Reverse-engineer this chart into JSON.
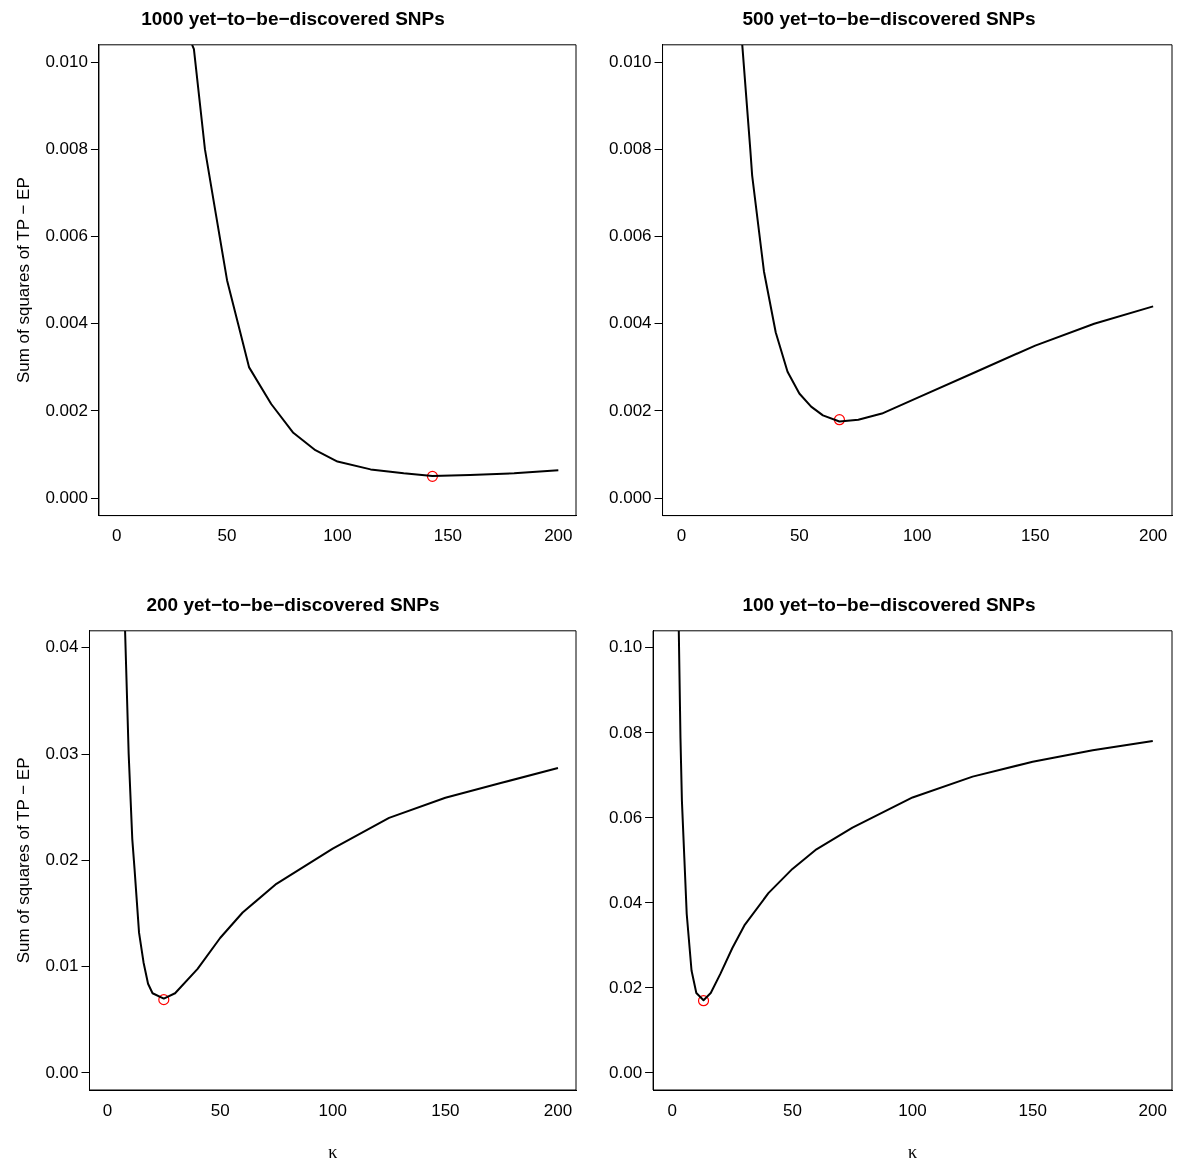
{
  "chart_data": [
    {
      "type": "line",
      "title": "1000 yet−to−be−discovered SNPs",
      "ylabel": "Sum of squares of TP − EP",
      "xlim": [
        -8,
        208
      ],
      "xticks": [
        0,
        50,
        100,
        150,
        200
      ],
      "ylim": [
        -0.0004,
        0.0104
      ],
      "yticks": [
        {
          "value": 0,
          "label": "0.000"
        },
        0.002,
        0.004,
        0.006,
        0.008,
        {
          "value": 0.01,
          "label": "0.010"
        }
      ],
      "grid": false,
      "legend": false,
      "series": [
        {
          "type": "line",
          "color": "#000000",
          "marker": "none",
          "x": [
            34.2,
            35,
            40,
            45,
            50,
            55,
            60,
            70,
            80,
            90,
            100,
            115,
            130,
            143,
            160,
            180,
            200
          ],
          "values": [
            0.0104,
            0.0103,
            0.008,
            0.0065,
            0.005,
            0.004,
            0.003,
            0.00216,
            0.0015,
            0.0011,
            0.00084,
            0.00066,
            0.00057,
            0.00051,
            0.00053,
            0.00057,
            0.00064
          ]
        },
        {
          "type": "scatter",
          "color": "#ff0000",
          "marker": "circle",
          "x": [
            143
          ],
          "values": [
            0.0005
          ]
        }
      ]
    },
    {
      "type": "line",
      "title": "500 yet−to−be−discovered SNPs",
      "xlim": [
        -8,
        208
      ],
      "xticks": [
        0,
        50,
        100,
        150,
        200
      ],
      "ylim": [
        -0.0004,
        0.0104
      ],
      "yticks": [
        {
          "value": 0,
          "label": "0.000"
        },
        0.002,
        0.004,
        0.006,
        0.008,
        {
          "value": 0.01,
          "label": "0.010"
        }
      ],
      "grid": false,
      "legend": false,
      "series": [
        {
          "type": "line",
          "color": "#000000",
          "marker": "none",
          "x": [
            25.8,
            29.2,
            30,
            35,
            40,
            45,
            50,
            55,
            60,
            67,
            75,
            85,
            100,
            125,
            150,
            175,
            200
          ],
          "values": [
            0.0104,
            0.008,
            0.0074,
            0.0052,
            0.0038,
            0.0029,
            0.0024,
            0.0021,
            0.0019,
            0.00176,
            0.0018,
            0.00194,
            0.0023,
            0.0029,
            0.0035,
            0.004,
            0.0044
          ]
        },
        {
          "type": "scatter",
          "color": "#ff0000",
          "marker": "circle",
          "x": [
            67
          ],
          "values": [
            0.0018
          ]
        }
      ]
    },
    {
      "type": "line",
      "title": "200 yet−to−be−discovered SNPs",
      "xlabel": "κ",
      "ylabel": "Sum of squares of TP − EP",
      "xlim": [
        -8,
        208
      ],
      "xticks": [
        0,
        50,
        100,
        150,
        200
      ],
      "ylim": [
        -0.0016,
        0.0416
      ],
      "yticks": [
        {
          "value": 0,
          "label": "0.00"
        },
        0.01,
        0.02,
        0.03,
        0.04
      ],
      "grid": false,
      "legend": false,
      "series": [
        {
          "type": "line",
          "color": "#000000",
          "marker": "none",
          "x": [
            7.8,
            9.4,
            11,
            12,
            14,
            16,
            18,
            20,
            25,
            30,
            40,
            50,
            60,
            75,
            100,
            125,
            150,
            175,
            200
          ],
          "values": [
            0.0416,
            0.03,
            0.022,
            0.0192,
            0.0132,
            0.0104,
            0.0084,
            0.0075,
            0.007,
            0.0075,
            0.0098,
            0.0127,
            0.0151,
            0.0178,
            0.0211,
            0.024,
            0.0259,
            0.0273,
            0.0287
          ]
        },
        {
          "type": "scatter",
          "color": "#ff0000",
          "marker": "circle",
          "x": [
            25
          ],
          "values": [
            0.0069
          ]
        }
      ]
    },
    {
      "type": "line",
      "title": "100 yet−to−be−discovered SNPs",
      "xlabel": "κ",
      "xlim": [
        -8,
        208
      ],
      "xticks": [
        0,
        50,
        100,
        150,
        200
      ],
      "ylim": [
        -0.004,
        0.104
      ],
      "yticks": [
        {
          "value": 0,
          "label": "0.00"
        },
        0.02,
        0.04,
        0.06,
        0.08,
        {
          "value": 0.1,
          "label": "0.10"
        }
      ],
      "grid": false,
      "legend": false,
      "series": [
        {
          "type": "line",
          "color": "#000000",
          "marker": "none",
          "x": [
            2.7,
            3.4,
            4,
            5,
            6,
            8,
            10,
            13,
            16,
            20,
            25,
            30,
            40,
            50,
            60,
            75,
            100,
            125,
            150,
            175,
            200
          ],
          "values": [
            0.104,
            0.0787,
            0.064,
            0.0507,
            0.0374,
            0.0241,
            0.0188,
            0.0171,
            0.0188,
            0.0233,
            0.0294,
            0.0347,
            0.0423,
            0.048,
            0.0526,
            0.0577,
            0.0648,
            0.0697,
            0.0732,
            0.0759,
            0.0781
          ]
        },
        {
          "type": "scatter",
          "color": "#ff0000",
          "marker": "circle",
          "x": [
            13
          ],
          "values": [
            0.017
          ]
        }
      ]
    }
  ]
}
